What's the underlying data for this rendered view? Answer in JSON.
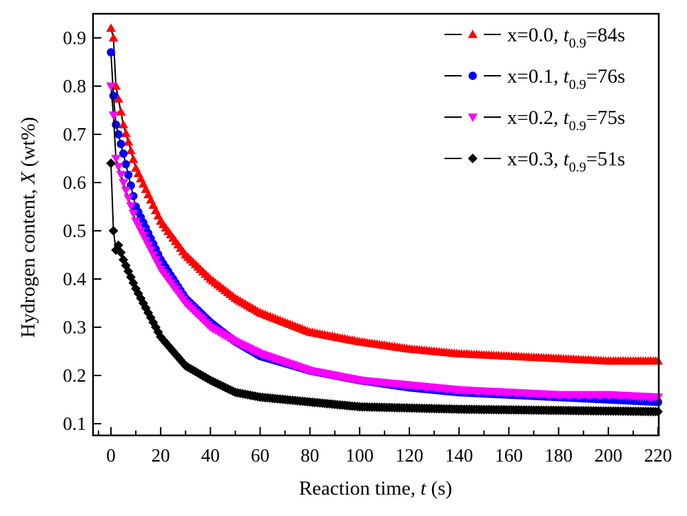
{
  "chart_data": {
    "type": "line",
    "xlabel": {
      "main": "Reaction time, ",
      "var": "t",
      "unit": " (s)"
    },
    "ylabel": {
      "main": "Hydrogen content, ",
      "var": "X",
      "unit": " (wt%)"
    },
    "xlim": [
      -7,
      222
    ],
    "ylim": [
      0.08,
      0.95
    ],
    "xticks": [
      0,
      20,
      40,
      60,
      80,
      100,
      120,
      140,
      160,
      180,
      200,
      220
    ],
    "yticks": [
      0.1,
      0.2,
      0.3,
      0.4,
      0.5,
      0.6,
      0.7,
      0.8,
      0.9
    ],
    "grid": false,
    "legend_position": "top-right",
    "series": [
      {
        "name": "x=0.0, t0.9=84s",
        "label": "x=0.0, ",
        "t": "t",
        "sub": "0.9",
        "val": "=84s",
        "color": "#ff0000",
        "marker": "triangle-up",
        "x": [
          0,
          1,
          2,
          5,
          10,
          20,
          30,
          40,
          50,
          60,
          80,
          100,
          120,
          140,
          160,
          180,
          200,
          220
        ],
        "y": [
          0.92,
          0.9,
          0.8,
          0.72,
          0.63,
          0.52,
          0.45,
          0.4,
          0.36,
          0.33,
          0.29,
          0.27,
          0.255,
          0.245,
          0.24,
          0.235,
          0.23,
          0.23
        ]
      },
      {
        "name": "x=0.1, t0.9=76s",
        "label": "x=0.1, ",
        "t": "t",
        "sub": "0.9",
        "val": "=76s",
        "color": "#0000ff",
        "marker": "circle",
        "x": [
          0,
          1,
          2,
          5,
          10,
          20,
          30,
          40,
          50,
          60,
          80,
          100,
          120,
          140,
          160,
          180,
          200,
          220
        ],
        "y": [
          0.87,
          0.78,
          0.72,
          0.66,
          0.55,
          0.44,
          0.36,
          0.31,
          0.27,
          0.24,
          0.21,
          0.19,
          0.175,
          0.165,
          0.16,
          0.155,
          0.15,
          0.145
        ]
      },
      {
        "name": "x=0.2, t0.9=75s",
        "label": "x=0.2, ",
        "t": "t",
        "sub": "0.9",
        "val": "=75s",
        "color": "#ff00ff",
        "marker": "triangle-down",
        "x": [
          0,
          1,
          2,
          5,
          10,
          20,
          30,
          40,
          50,
          60,
          80,
          100,
          120,
          140,
          160,
          180,
          200,
          220
        ],
        "y": [
          0.8,
          0.74,
          0.65,
          0.6,
          0.52,
          0.42,
          0.35,
          0.3,
          0.27,
          0.245,
          0.21,
          0.19,
          0.18,
          0.17,
          0.165,
          0.16,
          0.16,
          0.155
        ]
      },
      {
        "name": "x=0.3, t0.9=51s",
        "label": "x=0.3, ",
        "t": "t",
        "sub": "0.9",
        "val": "=51s",
        "color": "#000000",
        "marker": "diamond",
        "x": [
          0,
          1,
          2,
          3,
          5,
          10,
          20,
          30,
          40,
          50,
          60,
          80,
          100,
          140,
          220
        ],
        "y": [
          0.64,
          0.5,
          0.46,
          0.47,
          0.44,
          0.38,
          0.28,
          0.22,
          0.19,
          0.165,
          0.155,
          0.145,
          0.135,
          0.13,
          0.125
        ]
      }
    ]
  }
}
